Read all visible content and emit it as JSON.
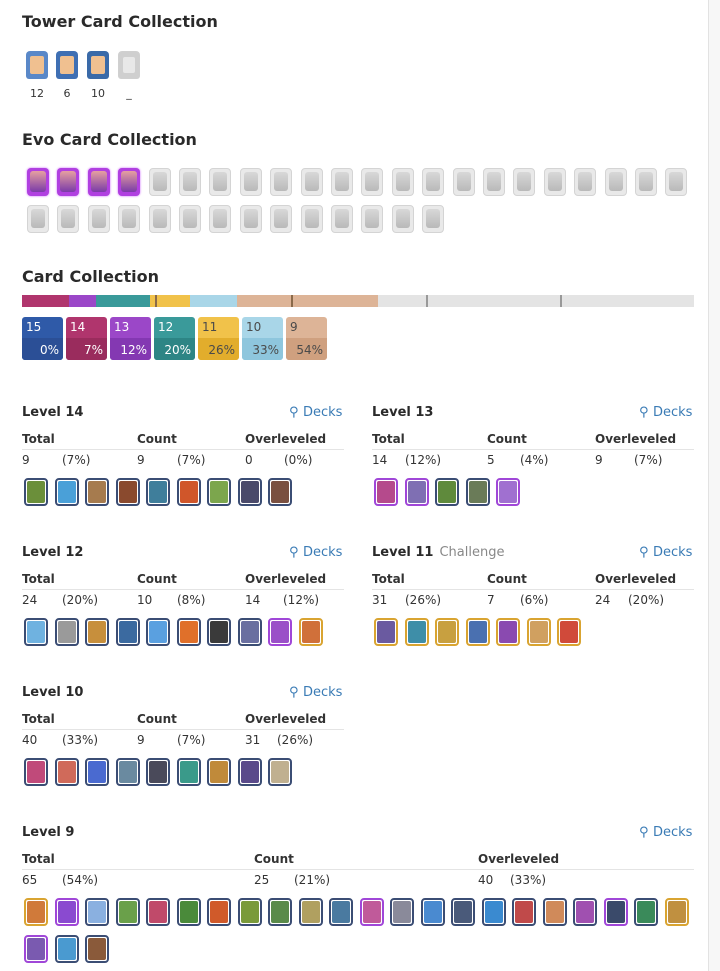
{
  "tower_section": {
    "title": "Tower Card Collection",
    "towers": [
      {
        "count": "12",
        "color": "#5a88c8"
      },
      {
        "count": "6",
        "color": "#3f6fb3"
      },
      {
        "count": "10",
        "color": "#3a6aa8"
      },
      {
        "count": "_",
        "color": "#cfcfcf"
      }
    ]
  },
  "evo_section": {
    "title": "Evo Card Collection",
    "owned_count": 4,
    "total_count": 36
  },
  "collection": {
    "title": "Card Collection",
    "bar_segments": [
      {
        "level": "14",
        "share": 0.07,
        "color": "#b0356d"
      },
      {
        "level": "13",
        "share": 0.04,
        "color": "#9b47c8"
      },
      {
        "level": "12",
        "share": 0.08,
        "color": "#3a9a9a"
      },
      {
        "level": "11",
        "share": 0.06,
        "color": "#f1c24a"
      },
      {
        "level": "10",
        "share": 0.07,
        "color": "#a9d6e8"
      },
      {
        "level": "9",
        "share": 0.21,
        "color": "#ddb497"
      },
      {
        "level": "unowned",
        "share": 0.47,
        "color": "#e4e4e4"
      }
    ],
    "tiles": [
      {
        "level": "15",
        "pct": "0%",
        "color": "#2f5aa8",
        "low": "#2b4f96"
      },
      {
        "level": "14",
        "pct": "7%",
        "color": "#b0356d",
        "low": "#9a2c5d"
      },
      {
        "level": "13",
        "pct": "12%",
        "color": "#9b47c8",
        "low": "#8438b2"
      },
      {
        "level": "12",
        "pct": "20%",
        "color": "#3a9a9a",
        "low": "#2d8585"
      },
      {
        "level": "11",
        "pct": "26%",
        "color": "#f1c24a",
        "low": "#e2ad2c",
        "dark": true
      },
      {
        "level": "10",
        "pct": "33%",
        "color": "#a9d6e8",
        "low": "#8ec6dd",
        "dark": true
      },
      {
        "level": "9",
        "pct": "54%",
        "color": "#ddb497",
        "low": "#cfa07f",
        "dark": true
      }
    ]
  },
  "labels": {
    "decks": "Decks",
    "total": "Total",
    "count": "Count",
    "overleveled": "Overleveled"
  },
  "levels": {
    "l14": {
      "title": "Level 14",
      "total": "9",
      "total_pct": "(7%)",
      "count": "9",
      "count_pct": "(7%)",
      "over": "0",
      "over_pct": "(0%)",
      "cards": [
        "#6b8f3a",
        "#4aa0d8",
        "#a67b4e",
        "#8a4a2e",
        "#3f7e9b",
        "#d0562a",
        "#7ca64d",
        "#4a4a6a",
        "#7a5040"
      ]
    },
    "l13": {
      "title": "Level 13",
      "total": "14",
      "total_pct": "(12%)",
      "count": "5",
      "count_pct": "(4%)",
      "over": "9",
      "over_pct": "(7%)",
      "cards": [
        "#b54a8c",
        "#7f6fb3",
        "#5f8a3c",
        "#6a7b58",
        "#a070d0"
      ]
    },
    "l12": {
      "title": "Level 12",
      "total": "24",
      "total_pct": "(20%)",
      "count": "10",
      "count_pct": "(8%)",
      "over": "14",
      "over_pct": "(12%)",
      "cards": [
        "#6fb2e0",
        "#9a9a9a",
        "#c78f3c",
        "#3b6aa0",
        "#5aa0e0",
        "#e0702a",
        "#3a3a3a",
        "#6a6fa0",
        "#9a50c8",
        "#d0703a"
      ]
    },
    "l11": {
      "title": "Level 11",
      "subtitle": "Challenge",
      "total": "31",
      "total_pct": "(26%)",
      "count": "7",
      "count_pct": "(6%)",
      "over": "24",
      "over_pct": "(20%)",
      "cards": [
        "#6a5aa0",
        "#3e8ea8",
        "#c8a040",
        "#4a70b0",
        "#8a4ab0",
        "#d0a060",
        "#d04a3a"
      ]
    },
    "l10": {
      "title": "Level 10",
      "total": "40",
      "total_pct": "(33%)",
      "count": "9",
      "count_pct": "(7%)",
      "over": "31",
      "over_pct": "(26%)",
      "cards": [
        "#c04a7a",
        "#d06a5a",
        "#4a6ad0",
        "#6a8aa0",
        "#4a4a5a",
        "#3a9a8a",
        "#c08a3a",
        "#5a4a8a",
        "#c0b090"
      ]
    },
    "l9": {
      "title": "Level 9",
      "total": "65",
      "total_pct": "(54%)",
      "count": "25",
      "count_pct": "(21%)",
      "over": "40",
      "over_pct": "(33%)",
      "cards": [
        "#d07a3a",
        "#8a4ad0",
        "#8ab0e0",
        "#6aa04a",
        "#c04a6a",
        "#4a8a3a",
        "#d05a2a",
        "#7a9a3a",
        "#5a8a4a",
        "#b0a060",
        "#4a7aa0",
        "#c05a9a",
        "#8a8a9a",
        "#4a8ad0",
        "#4a5a7a",
        "#3a8ad0",
        "#c04a4a",
        "#d08a5a",
        "#a050b0",
        "#3a4a6a",
        "#3a8a5a",
        "#c09040",
        "#7a5ab0",
        "#4a9ad0",
        "#8a5a3a"
      ]
    }
  }
}
